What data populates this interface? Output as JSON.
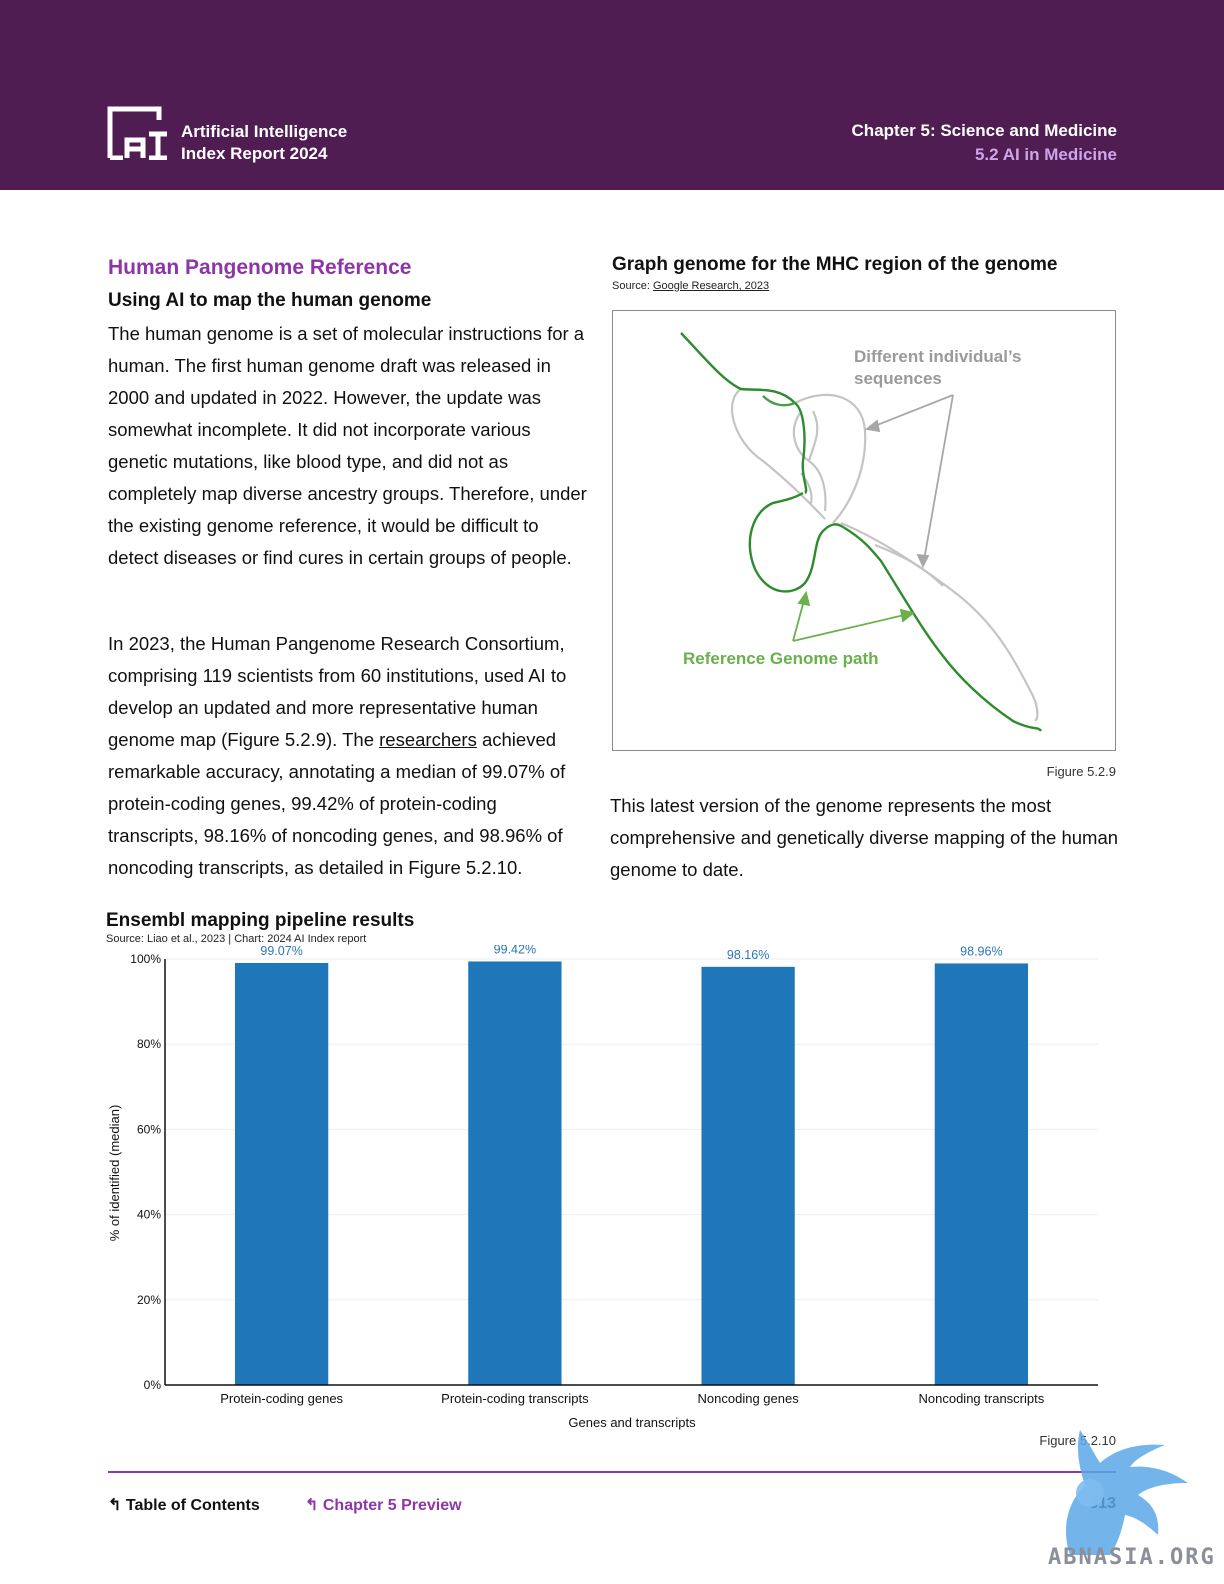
{
  "header": {
    "brand_line1": "Artificial Intelligence",
    "brand_line2": "Index Report 2024",
    "chapter": "Chapter 5: Science and Medicine",
    "section": "5.2 AI in Medicine",
    "logo_text": "AI"
  },
  "article": {
    "section_title": "Human Pangenome Reference",
    "subtitle": "Using AI to map the human genome",
    "para1": "The human genome is a set of molecular instructions for a human. The first human genome draft was released in 2000 and updated in 2022. However, the update was somewhat incomplete. It did not incorporate various genetic mutations, like blood type, and did not as completely map diverse ancestry groups. Therefore, under the existing genome reference, it would be difficult to detect diseases or find cures in certain groups of people.",
    "para2_before": "In 2023, the Human Pangenome Research Consortium, comprising 119 scientists from 60 institutions, used AI to develop an updated and more representative human genome map (Figure 5.2.9). The ",
    "para2_link": "researchers",
    "para2_after": " achieved remarkable accuracy, annotating a median of 99.07% of protein-coding genes, 99.42% of protein-coding transcripts, 98.16% of noncoding genes, and 98.96% of noncoding transcripts, as detailed in Figure 5.2.10.",
    "para3": "This latest version of the genome represents the most comprehensive and genetically diverse mapping of the human genome to date."
  },
  "figure1": {
    "title": "Graph genome for the MHC region of the genome",
    "source_prefix": "Source: ",
    "source_link": "Google Research, 2023",
    "label_sequences_line1": "Different individual’s",
    "label_sequences_line2": "sequences",
    "label_reference": "Reference Genome path",
    "caption": "Figure 5.2.9",
    "colors": {
      "reference": "#2e8b2e",
      "sequences": "#b8b8b8",
      "label_green": "#6ab04c",
      "label_gray": "#9a9a9a"
    }
  },
  "chart_data": {
    "type": "bar",
    "title": "Ensembl mapping pipeline results",
    "source": "Source: Liao et al., 2023 | Chart: 2024 AI Index report",
    "categories": [
      "Protein-coding genes",
      "Protein-coding transcripts",
      "Noncoding genes",
      "Noncoding transcripts"
    ],
    "values": [
      99.07,
      99.42,
      98.16,
      98.96
    ],
    "value_labels": [
      "99.07%",
      "99.42%",
      "98.16%",
      "98.96%"
    ],
    "xlabel": "Genes and transcripts",
    "ylabel": "% of identified (median)",
    "ylim": [
      0,
      100
    ],
    "yticks": [
      "0%",
      "20%",
      "40%",
      "60%",
      "80%",
      "100%"
    ],
    "grid": true,
    "bar_color": "#1f77b9",
    "label_color": "#2a77b8"
  },
  "figure2": {
    "caption": "Figure 5.2.10"
  },
  "footer": {
    "toc": "Table of Contents",
    "prev": "Chapter 5 Preview",
    "page": "313"
  },
  "watermark": {
    "text": "ABNASIA.ORG",
    "color": "#5aa8e6"
  }
}
